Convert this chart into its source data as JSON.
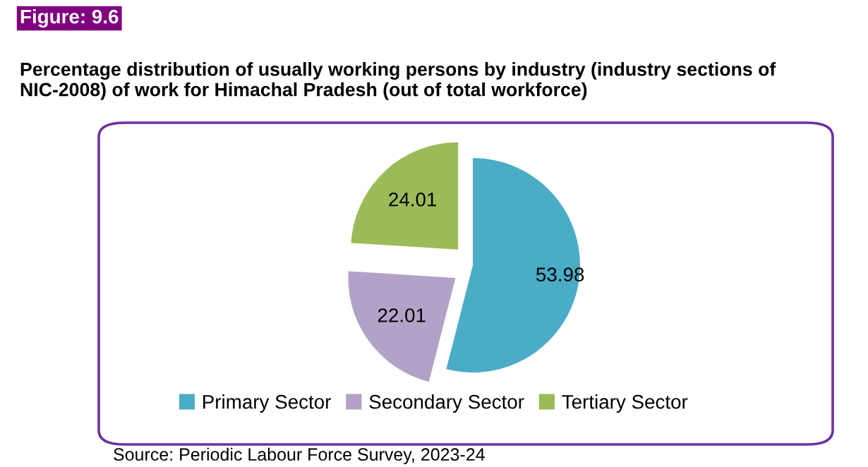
{
  "chart_data": {
    "type": "pie",
    "title": "Percentage distribution of usually working persons by industry (industry sections of NIC-2008) of work for Himachal Pradesh (out of total workforce)",
    "annotations": [
      "Figure: 9.6",
      "Source: Periodic Labour Force Survey, 2023-24"
    ],
    "categories": [
      "Primary Sector",
      "Secondary Sector",
      "Tertiary Sector"
    ],
    "values": [
      53.98,
      22.01,
      24.01
    ],
    "colors": [
      "#4bacc6",
      "#b3a2c7",
      "#9bbb59"
    ],
    "data_labels": true,
    "legend": "bottom"
  }
}
